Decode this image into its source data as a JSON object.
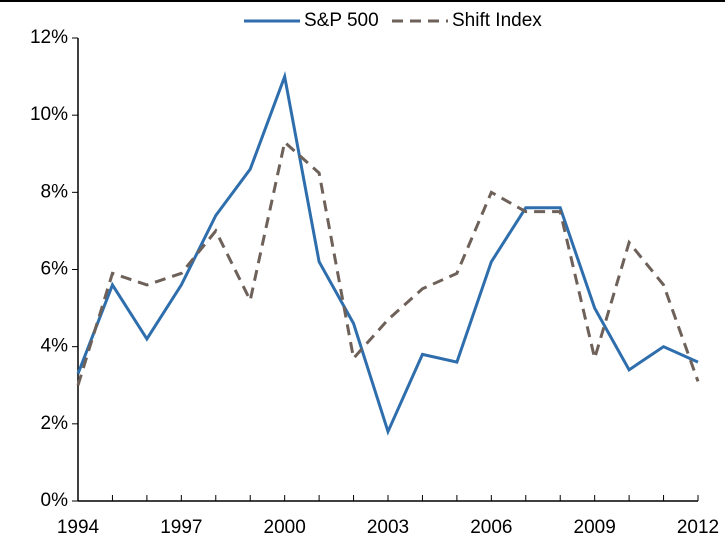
{
  "chart_data": {
    "type": "line",
    "x": [
      1994,
      1995,
      1996,
      1997,
      1998,
      1999,
      2000,
      2001,
      2002,
      2003,
      2004,
      2005,
      2006,
      2007,
      2008,
      2009,
      2010,
      2011,
      2012
    ],
    "series": [
      {
        "name": "S&P 500",
        "color": "#2f6ead",
        "dash": "solid",
        "values": [
          3.3,
          5.6,
          4.2,
          5.6,
          7.4,
          8.6,
          11.0,
          6.2,
          4.6,
          1.8,
          3.8,
          3.6,
          6.2,
          7.6,
          7.6,
          5.0,
          3.4,
          4.0,
          3.6
        ]
      },
      {
        "name": "Shift Index",
        "color": "#6e6159",
        "dash": "dashed",
        "values": [
          3.0,
          5.9,
          5.6,
          5.9,
          7.0,
          5.2,
          9.3,
          8.5,
          3.7,
          4.7,
          5.5,
          5.9,
          8.0,
          7.5,
          7.5,
          3.7,
          6.7,
          5.6,
          3.1
        ]
      }
    ],
    "xlim": [
      1994,
      2012
    ],
    "xticks": [
      1994,
      1997,
      2000,
      2003,
      2006,
      2009,
      2012
    ],
    "ylim": [
      0,
      12
    ],
    "yticks": [
      {
        "value": 0,
        "label": "0%"
      },
      {
        "value": 2,
        "label": "2%"
      },
      {
        "value": 4,
        "label": "4%"
      },
      {
        "value": 6,
        "label": "6%"
      },
      {
        "value": 8,
        "label": "8%"
      },
      {
        "value": 10,
        "label": "10%"
      },
      {
        "value": 12,
        "label": "12%"
      }
    ],
    "grid": false,
    "legend": "top"
  }
}
